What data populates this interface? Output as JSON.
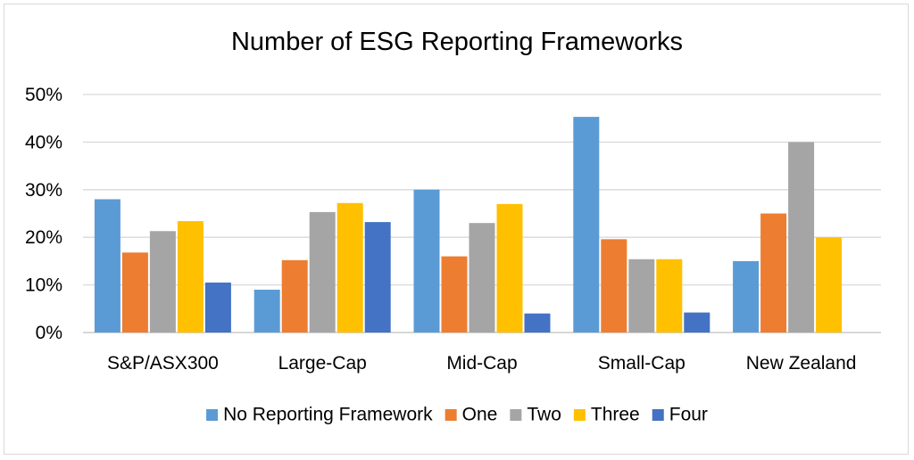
{
  "chart_data": {
    "type": "bar",
    "title": "Number of ESG Reporting Frameworks",
    "categories": [
      "S&P/ASX300",
      "Large-Cap",
      "Mid-Cap",
      "Small-Cap",
      "New Zealand"
    ],
    "series": [
      {
        "name": "No Reporting Framework",
        "color": "#5b9bd5",
        "values": [
          28,
          9,
          30,
          45.3,
          15
        ]
      },
      {
        "name": "One",
        "color": "#ed7d31",
        "values": [
          16.8,
          15.2,
          16,
          19.6,
          25
        ]
      },
      {
        "name": "Two",
        "color": "#a5a5a5",
        "values": [
          21.3,
          25.3,
          23,
          15.4,
          40
        ]
      },
      {
        "name": "Three",
        "color": "#ffc000",
        "values": [
          23.4,
          27.2,
          27,
          15.4,
          20
        ]
      },
      {
        "name": "Four",
        "color": "#4472c4",
        "values": [
          10.5,
          23.2,
          4,
          4.2,
          null
        ]
      }
    ],
    "yticks": [
      "0%",
      "10%",
      "20%",
      "30%",
      "40%",
      "50%"
    ],
    "ylim": [
      0,
      50
    ],
    "ytick_step": 10,
    "grid": true,
    "legend_position": "bottom"
  }
}
